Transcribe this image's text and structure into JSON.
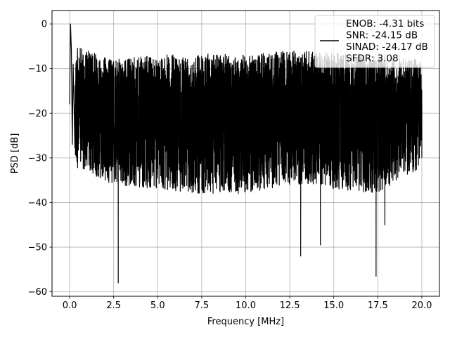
{
  "chart_data": {
    "type": "line",
    "title": "",
    "xlabel": "Frequency [MHz]",
    "ylabel": "PSD [dB]",
    "xlim": [
      -1,
      21
    ],
    "ylim": [
      -61,
      3
    ],
    "xticks": [
      0.0,
      2.5,
      5.0,
      7.5,
      10.0,
      12.5,
      15.0,
      17.5,
      20.0
    ],
    "xtick_labels": [
      "0.0",
      "2.5",
      "5.0",
      "7.5",
      "10.0",
      "12.5",
      "15.0",
      "17.5",
      "20.0"
    ],
    "yticks": [
      0,
      -10,
      -20,
      -30,
      -40,
      -50,
      -60
    ],
    "ytick_labels": [
      "0",
      "−10",
      "−20",
      "−30",
      "−40",
      "−50",
      "−60"
    ],
    "grid": true,
    "legend_position": "top-right",
    "series": [
      {
        "name": "ENOB: -4.31 bits\nSNR: -24.15 dB\nSINAD: -24.17 dB\nSFDR: 3.08",
        "color": "#000000",
        "x": [
          0.0,
          0.05,
          0.1,
          0.15,
          0.2,
          2.74,
          2.76,
          2.78,
          13.1,
          13.12,
          13.14,
          14.22,
          14.24,
          14.26,
          17.38,
          17.4,
          17.42,
          17.88,
          17.9,
          17.92,
          20.0
        ],
        "y": [
          -18,
          0,
          -6,
          -27,
          -9,
          -12,
          -58,
          -13,
          -14,
          -52,
          -15,
          -14,
          -49.5,
          -15,
          -13,
          -56.5,
          -14,
          -14,
          -45,
          -15,
          -18
        ],
        "band_upper": [
          [
            0.3,
            -5
          ],
          [
            2.5,
            -8
          ],
          [
            5,
            -7
          ],
          [
            7.5,
            -6.5
          ],
          [
            10,
            -7
          ],
          [
            12.5,
            -6
          ],
          [
            15,
            -6.5
          ],
          [
            17.5,
            -7
          ],
          [
            20,
            -8
          ]
        ],
        "band_lower": [
          [
            0.3,
            -32
          ],
          [
            2.5,
            -36
          ],
          [
            5,
            -37
          ],
          [
            7.5,
            -38
          ],
          [
            10,
            -38
          ],
          [
            12.5,
            -36
          ],
          [
            15,
            -37
          ],
          [
            17.5,
            -38
          ],
          [
            20,
            -32
          ]
        ]
      }
    ]
  }
}
